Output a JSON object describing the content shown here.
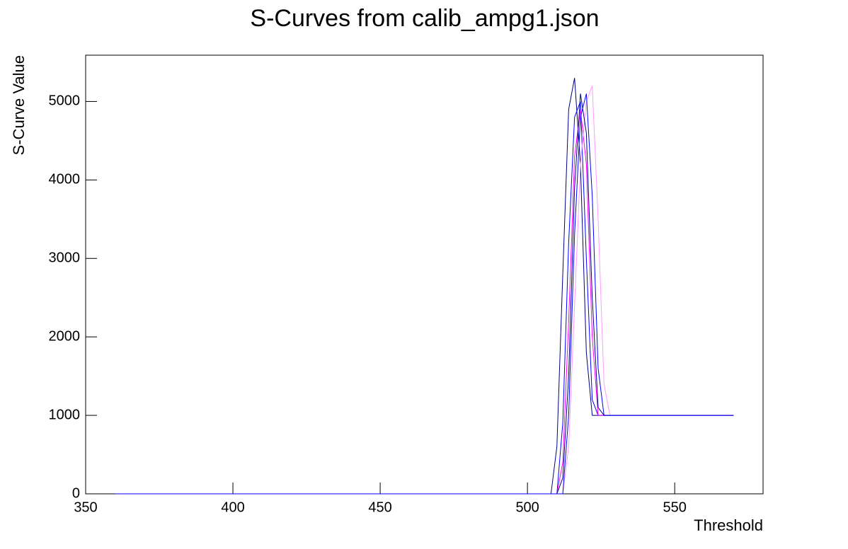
{
  "chart_data": {
    "type": "line",
    "title": "S-Curves from calib_ampg1.json",
    "x_label": "Threshold",
    "y_label": "S-Curve Value",
    "x": [
      360,
      506,
      508,
      510,
      512,
      514,
      516,
      518,
      520,
      522,
      524,
      526,
      528,
      570
    ],
    "series": [
      {
        "color": "#000080",
        "values": [
          0,
          0,
          0,
          600,
          2800,
          4900,
          5300,
          4200,
          1800,
          1000,
          1000,
          1000,
          1000,
          1000
        ]
      },
      {
        "color": "#0000ff",
        "values": [
          0,
          0,
          0,
          0,
          900,
          3200,
          4800,
          5000,
          3000,
          1200,
          1000,
          1000,
          1000,
          1000
        ]
      },
      {
        "color": "#ff00ff",
        "values": [
          0,
          0,
          0,
          0,
          400,
          2200,
          4300,
          4900,
          4200,
          2000,
          1000,
          1000,
          1000,
          1000
        ]
      },
      {
        "color": "#ff99ff",
        "values": [
          0,
          0,
          0,
          0,
          0,
          600,
          2400,
          4200,
          5000,
          5200,
          3500,
          1400,
          1000,
          1000
        ]
      },
      {
        "color": "#000080",
        "values": [
          0,
          0,
          0,
          0,
          200,
          1500,
          3900,
          5100,
          4600,
          2500,
          1100,
          1000,
          1000,
          1000
        ]
      },
      {
        "color": "#0000ff",
        "values": [
          0,
          0,
          0,
          0,
          0,
          1000,
          3300,
          4800,
          5100,
          3800,
          1600,
          1000,
          1000,
          1000
        ]
      }
    ],
    "xlim": [
      350,
      580
    ],
    "xticks": [
      350,
      400,
      450,
      500,
      550
    ],
    "ylim": [
      0,
      5590
    ],
    "yticks": [
      0,
      1000,
      2000,
      3000,
      4000,
      5000
    ]
  }
}
